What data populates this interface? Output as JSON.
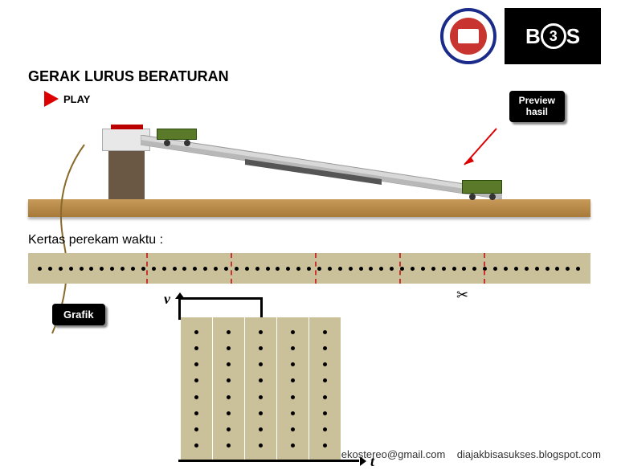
{
  "title": "GERAK LURUS BERATURAN",
  "buttons": {
    "play": "PLAY",
    "preview_line1": "Preview",
    "preview_line2": "hasil",
    "grafik": "Grafik"
  },
  "tape": {
    "label": "Kertas perekam waktu :",
    "dot_count": 53,
    "mark_positions_pct": [
      21,
      36,
      51,
      66,
      81
    ],
    "background": "#cac09a",
    "scissors": "✂"
  },
  "graph": {
    "bar_count": 5,
    "dots_per_bar": 8,
    "bar_color": "#cac09a",
    "v_label": "v",
    "t_label": "t"
  },
  "apparatus": {
    "table_color": "#c89a5a",
    "pedestal_color": "#6b5844",
    "cart_color": "#5a7a2a",
    "ramp_color": "#d0d0d0",
    "arrow_color": "#d00"
  },
  "logos": {
    "logo1_outer": "#1a2b8a",
    "logo1_inner": "#c8342f",
    "logo2_bg": "#000000",
    "logo2_text": "3"
  },
  "footer": {
    "email": "ekostereo@gmail.com",
    "blog": "diajakbisasukses.blogspot.com"
  }
}
